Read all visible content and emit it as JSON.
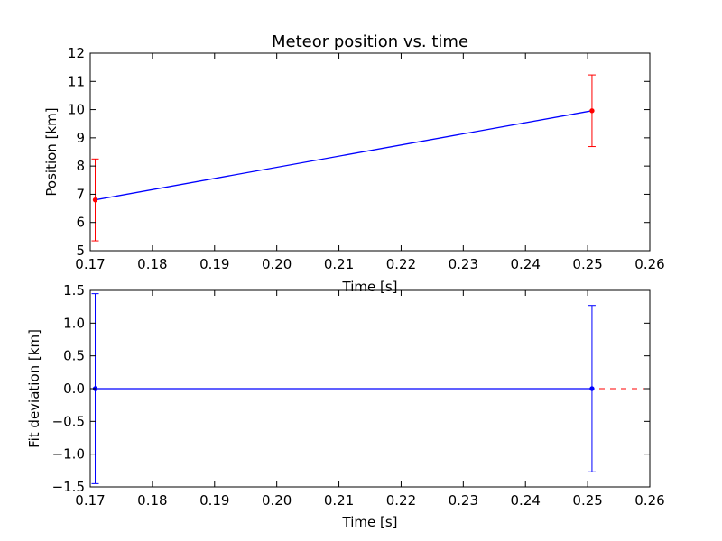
{
  "chart_data": [
    {
      "type": "line",
      "title": "Meteor position vs. time",
      "xlabel": "Time [s]",
      "ylabel": "Position [km]",
      "xlim": [
        0.17,
        0.26
      ],
      "ylim": [
        5,
        12
      ],
      "xticks": [
        "0.17",
        "0.18",
        "0.19",
        "0.20",
        "0.21",
        "0.22",
        "0.23",
        "0.24",
        "0.25",
        "0.26"
      ],
      "yticks": [
        "5",
        "6",
        "7",
        "8",
        "9",
        "10",
        "11",
        "12"
      ],
      "grid": false,
      "series": [
        {
          "x": [
            0.1708,
            0.2507
          ],
          "y": [
            6.8,
            9.96
          ],
          "yerr": [
            1.45,
            1.27
          ],
          "line_color": "#0000ff",
          "errorbar_color": "#ff0000",
          "marker_color": "#ff0000"
        }
      ]
    },
    {
      "type": "line",
      "title": "",
      "xlabel": "Time [s]",
      "ylabel": "Fit deviation [km]",
      "xlim": [
        0.17,
        0.26
      ],
      "ylim": [
        -1.5,
        1.5
      ],
      "xticks": [
        "0.17",
        "0.18",
        "0.19",
        "0.20",
        "0.21",
        "0.22",
        "0.23",
        "0.24",
        "0.25",
        "0.26"
      ],
      "yticks": [
        "−1.5",
        "−1.0",
        "−0.5",
        "0.0",
        "0.5",
        "1.0",
        "1.5"
      ],
      "grid": false,
      "series": [
        {
          "x": [
            0.1708,
            0.2507
          ],
          "y": [
            0.0,
            0.0
          ],
          "yerr": [
            1.45,
            1.27
          ],
          "line_color": "#0000ff",
          "errorbar_color": "#0000ff",
          "marker_color": "#0000ff"
        }
      ],
      "reference_line": {
        "y": 0.0,
        "style": "dashed",
        "color": "#ff0000"
      }
    }
  ]
}
